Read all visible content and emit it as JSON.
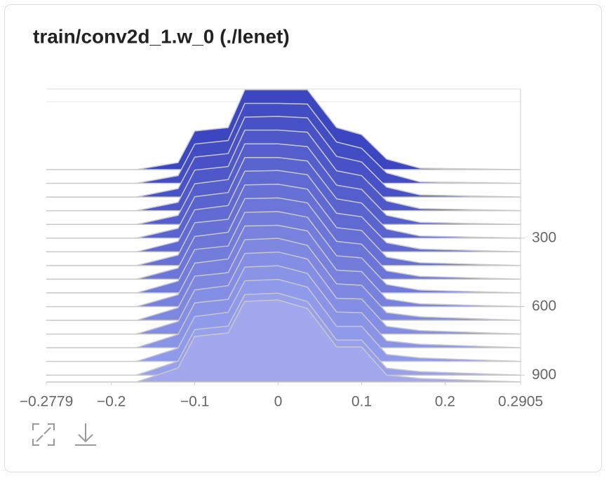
{
  "chart_data": {
    "type": "histogram-offset",
    "title": "train/conv2d_1.w_0 (./lenet)",
    "x": [
      -0.2779,
      -0.17,
      -0.12,
      -0.1,
      -0.06,
      -0.04,
      0,
      0.035,
      0.07,
      0.1,
      0.13,
      0.17,
      0.2905
    ],
    "xlim": [
      -0.2779,
      0.2905
    ],
    "xticks": [
      -0.2779,
      -0.2,
      -0.1,
      0,
      0.1,
      0.2,
      0.2905
    ],
    "ylim": [
      0,
      930
    ],
    "yticks": [
      300,
      600,
      900
    ],
    "series": [
      {
        "step": 0,
        "color": "#3c46c0",
        "values": [
          0,
          0,
          10,
          55,
          60,
          114,
          114,
          114,
          60,
          50,
          15,
          2,
          0
        ]
      },
      {
        "step": 60,
        "color": "#424cc3",
        "values": [
          0,
          0,
          11,
          56,
          61,
          114,
          114,
          113,
          59,
          50,
          15,
          2,
          0
        ]
      },
      {
        "step": 120,
        "color": "#4852c6",
        "values": [
          0,
          0,
          12,
          57,
          62,
          114,
          115,
          113,
          58,
          50,
          14,
          3,
          0
        ]
      },
      {
        "step": 180,
        "color": "#4e58c9",
        "values": [
          0,
          0,
          12,
          58,
          63,
          115,
          115,
          112,
          57,
          50,
          14,
          3,
          0
        ]
      },
      {
        "step": 240,
        "color": "#545ecc",
        "values": [
          0,
          0,
          13,
          58,
          64,
          115,
          115,
          111,
          56,
          50,
          13,
          3,
          0
        ]
      },
      {
        "step": 300,
        "color": "#5a64cf",
        "values": [
          0,
          0,
          14,
          59,
          65,
          115,
          115,
          110,
          56,
          50,
          13,
          3,
          0
        ]
      },
      {
        "step": 360,
        "color": "#606ad2",
        "values": [
          0,
          0,
          15,
          60,
          66,
          115,
          116,
          110,
          55,
          50,
          13,
          4,
          0
        ]
      },
      {
        "step": 420,
        "color": "#6670d5",
        "values": [
          0,
          0,
          15,
          61,
          66,
          115,
          116,
          109,
          54,
          50,
          12,
          4,
          0
        ]
      },
      {
        "step": 480,
        "color": "#6c76d8",
        "values": [
          0,
          0,
          16,
          61,
          67,
          115,
          116,
          109,
          54,
          50,
          12,
          4,
          0
        ]
      },
      {
        "step": 540,
        "color": "#727cdb",
        "values": [
          0,
          0,
          17,
          62,
          67,
          115,
          116,
          108,
          53,
          50,
          12,
          4,
          0
        ]
      },
      {
        "step": 600,
        "color": "#7882de",
        "values": [
          0,
          0,
          17,
          62,
          68,
          115,
          116,
          108,
          52,
          50,
          11,
          4,
          0
        ]
      },
      {
        "step": 660,
        "color": "#7e88e1",
        "values": [
          0,
          0,
          18,
          63,
          68,
          115,
          117,
          107,
          52,
          50,
          11,
          5,
          0
        ]
      },
      {
        "step": 720,
        "color": "#848ee4",
        "values": [
          0,
          0,
          18,
          63,
          69,
          115,
          117,
          107,
          51,
          50,
          11,
          5,
          0
        ]
      },
      {
        "step": 780,
        "color": "#8a94e7",
        "values": [
          0,
          0,
          19,
          64,
          69,
          115,
          117,
          106,
          51,
          50,
          10,
          5,
          0
        ]
      },
      {
        "step": 840,
        "color": "#909aea",
        "values": [
          0,
          0,
          19,
          64,
          70,
          115,
          117,
          106,
          50,
          50,
          10,
          5,
          0
        ]
      },
      {
        "step": 900,
        "color": "#98a0ec",
        "values": [
          0,
          0,
          20,
          65,
          70,
          115,
          117,
          105,
          50,
          50,
          10,
          5,
          0
        ]
      },
      {
        "step": 930,
        "color": "#a3a8ee",
        "values": [
          0,
          0,
          20,
          65,
          70,
          115,
          117,
          105,
          50,
          50,
          10,
          5,
          0
        ]
      }
    ]
  }
}
